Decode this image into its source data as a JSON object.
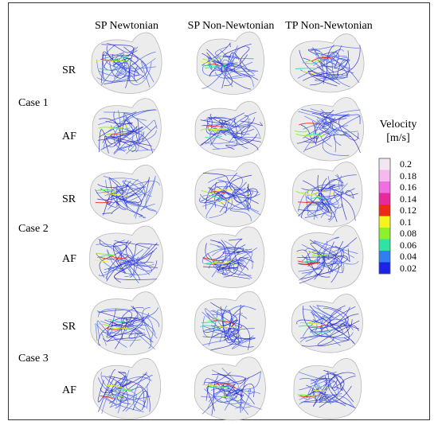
{
  "columns": [
    "SP Newtonian",
    "SP Non-Newtonian",
    "TP Non-Newtonian"
  ],
  "rhythms": [
    "SR",
    "AF"
  ],
  "cases": [
    {
      "label": "Case 1",
      "rows": [
        "SR",
        "AF"
      ]
    },
    {
      "label": "Case 2",
      "rows": [
        "SR",
        "AF"
      ]
    },
    {
      "label": "Case 3",
      "rows": [
        "SR",
        "AF"
      ]
    }
  ],
  "legend": {
    "title_line1": "Velocity",
    "title_line2": "[m/s]",
    "ticks": [
      "0.2",
      "0.18",
      "0.16",
      "0.14",
      "0.12",
      "0.1",
      "0.08",
      "0.06",
      "0.04",
      "0.02"
    ],
    "colors": [
      "#f3e6f3",
      "#f5b8ef",
      "#ef6fe3",
      "#e8299c",
      "#ee2a16",
      "#f3f51c",
      "#8df02c",
      "#2ee4a4",
      "#2f7ff0",
      "#1d22e8"
    ]
  },
  "colors": {
    "streamline": "#2a2ad0",
    "streamline_alt": "#3b5cf2",
    "chamber": "#e6e6e6",
    "chamber_edge": "#b9b9b9"
  }
}
